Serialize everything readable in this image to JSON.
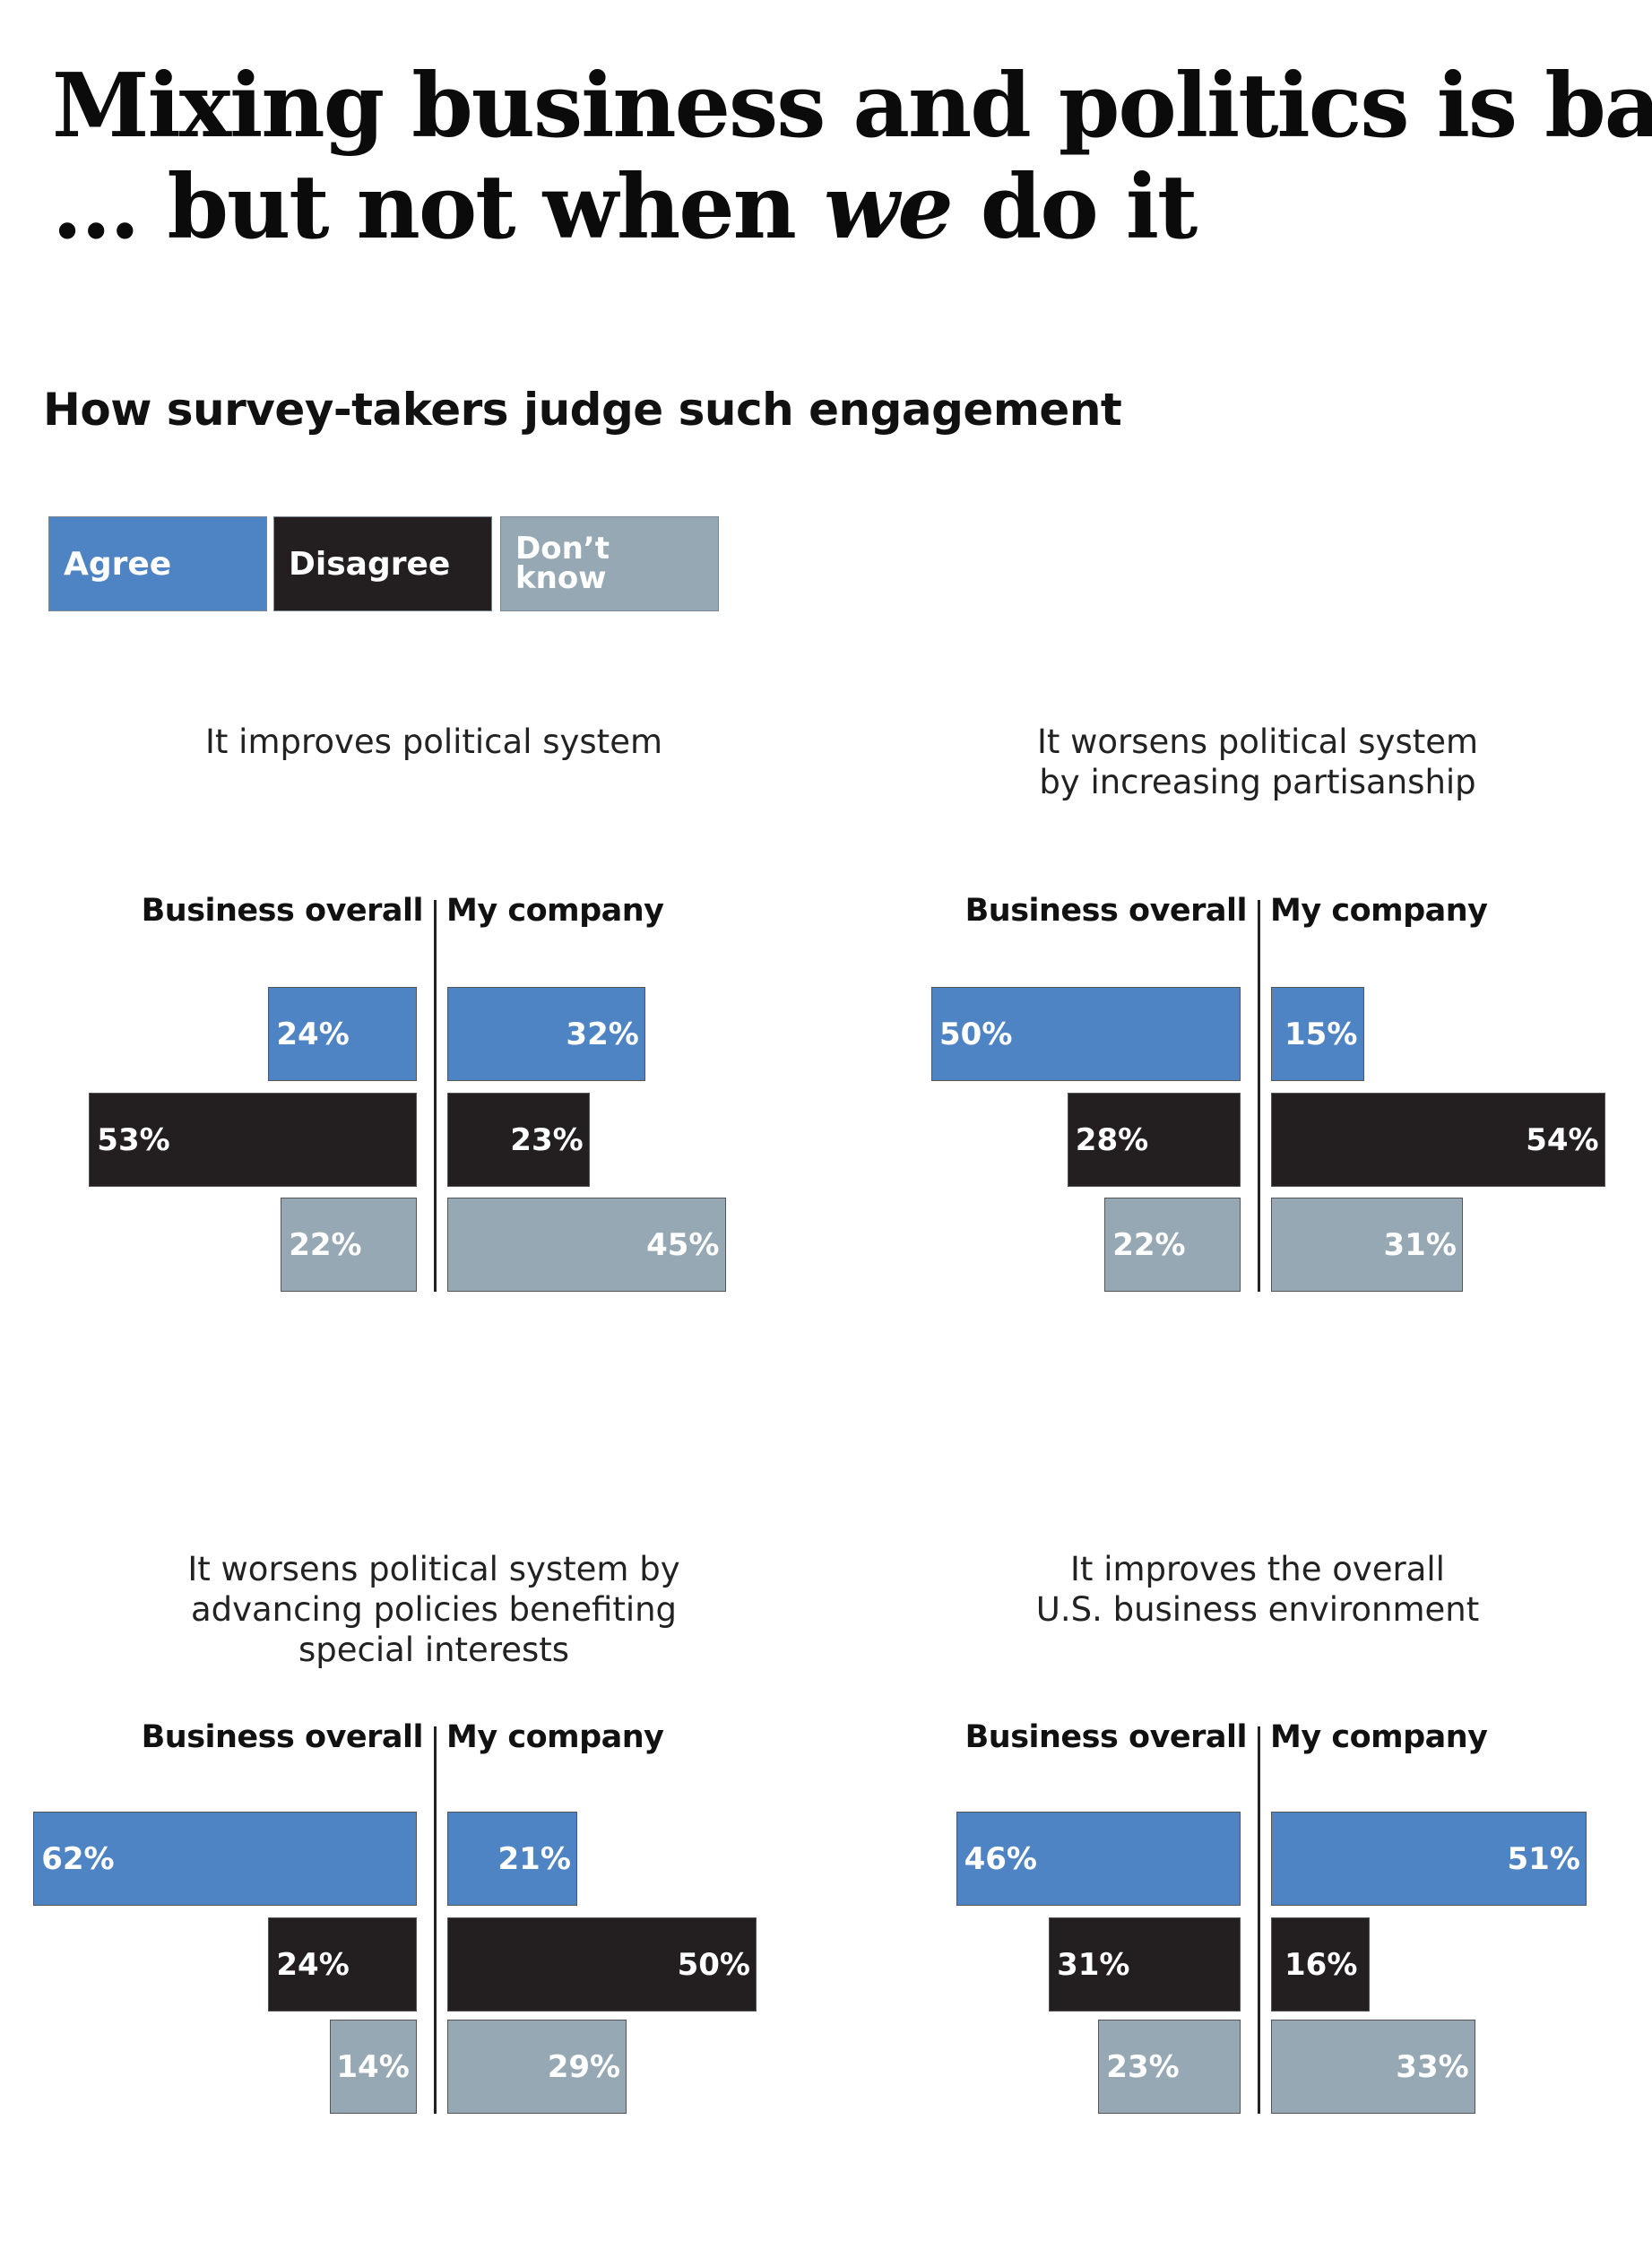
{
  "title": {
    "line1": "Mixing business and politics is bad",
    "line2_prefix": "... but not when ",
    "line2_emphasis": "we",
    "line2_suffix": " do it"
  },
  "subtitle": "How survey-takers judge such engagement",
  "legend": [
    {
      "key": "agree",
      "label": "Agree",
      "color": "#4f84c4"
    },
    {
      "key": "disagree",
      "label": "Disagree",
      "color": "#231f20"
    },
    {
      "key": "dont_know",
      "label_line1": "Don’t",
      "label_line2": "know",
      "color": "#96a8b3"
    }
  ],
  "chart_data": [
    {
      "type": "bar",
      "title": "It improves political system",
      "columns": [
        "Business overall",
        "My company"
      ],
      "series": [
        {
          "name": "Agree",
          "values": [
            24,
            32
          ]
        },
        {
          "name": "Disagree",
          "values": [
            53,
            23
          ]
        },
        {
          "name": "Don’t know",
          "values": [
            22,
            45
          ]
        }
      ]
    },
    {
      "type": "bar",
      "title": "It worsens political system by increasing partisanship",
      "columns": [
        "Business overall",
        "My company"
      ],
      "series": [
        {
          "name": "Agree",
          "values": [
            50,
            15
          ]
        },
        {
          "name": "Disagree",
          "values": [
            28,
            54
          ]
        },
        {
          "name": "Don’t know",
          "values": [
            22,
            31
          ]
        }
      ]
    },
    {
      "type": "bar",
      "title": "It worsens political system by advancing policies benefiting special interests",
      "columns": [
        "Business overall",
        "My company"
      ],
      "series": [
        {
          "name": "Agree",
          "values": [
            62,
            21
          ]
        },
        {
          "name": "Disagree",
          "values": [
            24,
            50
          ]
        },
        {
          "name": "Don’t know",
          "values": [
            14,
            29
          ]
        }
      ]
    },
    {
      "type": "bar",
      "title": "It improves the overall U.S. business environment",
      "columns": [
        "Business overall",
        "My company"
      ],
      "series": [
        {
          "name": "Agree",
          "values": [
            46,
            51
          ]
        },
        {
          "name": "Disagree",
          "values": [
            31,
            16
          ]
        },
        {
          "name": "Don’t know",
          "values": [
            23,
            33
          ]
        }
      ]
    }
  ],
  "panel_title_lines": [
    [
      "It improves political system"
    ],
    [
      "It worsens political system",
      "by increasing partisanship"
    ],
    [
      "It worsens political system by",
      "advancing policies benefiting",
      "special interests"
    ],
    [
      "It improves the overall",
      "U.S. business environment"
    ]
  ],
  "series_colors": [
    "#4f84c4",
    "#231f20",
    "#96a8b3"
  ]
}
